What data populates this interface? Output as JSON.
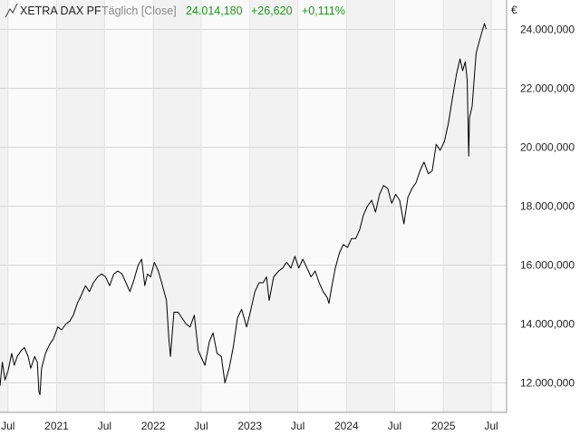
{
  "header": {
    "icon": "line-chart-icon",
    "instrument": "XETRA DAX PF",
    "interval": "Täglich [Close]",
    "last": "24.014,180",
    "change_abs": "+26,620",
    "change_pct": "+0,111%",
    "up_color": "#1a9a1a"
  },
  "currency_unit": "€",
  "chart_data": {
    "type": "line",
    "title": "XETRA DAX PF",
    "xlabel": "",
    "ylabel": "€",
    "grid": true,
    "ylim": [
      11000,
      25000
    ],
    "xlim": [
      "2020-06-01",
      "2025-08-28"
    ],
    "y_ticks": [
      12000,
      14000,
      16000,
      18000,
      20000,
      22000,
      24000
    ],
    "y_tick_labels": [
      "12.000,000",
      "14.000,000",
      "16.000,000",
      "18.000,000",
      "20.000,000",
      "22.000,000",
      "24.000,000"
    ],
    "x_ticks": [
      {
        "date": "2020-07-01",
        "label": "Jul"
      },
      {
        "date": "2021-01-01",
        "label": "2021"
      },
      {
        "date": "2021-07-01",
        "label": "Jul"
      },
      {
        "date": "2022-01-01",
        "label": "2022"
      },
      {
        "date": "2022-07-01",
        "label": "Jul"
      },
      {
        "date": "2023-01-01",
        "label": "2023"
      },
      {
        "date": "2023-07-01",
        "label": "Jul"
      },
      {
        "date": "2024-01-01",
        "label": "2024"
      },
      {
        "date": "2024-07-01",
        "label": "Jul"
      },
      {
        "date": "2025-01-01",
        "label": "2025"
      },
      {
        "date": "2025-07-01",
        "label": "Jul"
      }
    ],
    "series": [
      {
        "name": "XETRA DAX PF",
        "color": "#000000",
        "points": [
          [
            "2020-06-01",
            11900
          ],
          [
            "2020-06-10",
            12700
          ],
          [
            "2020-06-20",
            12100
          ],
          [
            "2020-07-01",
            12400
          ],
          [
            "2020-07-15",
            13000
          ],
          [
            "2020-07-25",
            12600
          ],
          [
            "2020-08-05",
            12900
          ],
          [
            "2020-08-20",
            13100
          ],
          [
            "2020-09-01",
            13200
          ],
          [
            "2020-09-15",
            12900
          ],
          [
            "2020-09-25",
            12500
          ],
          [
            "2020-10-10",
            12900
          ],
          [
            "2020-10-20",
            12700
          ],
          [
            "2020-10-26",
            11700
          ],
          [
            "2020-10-30",
            11600
          ],
          [
            "2020-11-05",
            12500
          ],
          [
            "2020-11-20",
            13000
          ],
          [
            "2020-12-05",
            13300
          ],
          [
            "2020-12-20",
            13500
          ],
          [
            "2021-01-05",
            13900
          ],
          [
            "2021-01-20",
            13800
          ],
          [
            "2021-02-05",
            14000
          ],
          [
            "2021-02-20",
            14100
          ],
          [
            "2021-03-05",
            14300
          ],
          [
            "2021-03-20",
            14700
          ],
          [
            "2021-04-05",
            15000
          ],
          [
            "2021-04-20",
            15300
          ],
          [
            "2021-05-05",
            15100
          ],
          [
            "2021-05-20",
            15400
          ],
          [
            "2021-06-05",
            15600
          ],
          [
            "2021-06-20",
            15700
          ],
          [
            "2021-07-05",
            15600
          ],
          [
            "2021-07-20",
            15300
          ],
          [
            "2021-08-05",
            15700
          ],
          [
            "2021-08-20",
            15800
          ],
          [
            "2021-09-05",
            15700
          ],
          [
            "2021-09-20",
            15400
          ],
          [
            "2021-10-05",
            15100
          ],
          [
            "2021-10-20",
            15500
          ],
          [
            "2021-11-05",
            16000
          ],
          [
            "2021-11-18",
            16200
          ],
          [
            "2021-11-30",
            15300
          ],
          [
            "2021-12-10",
            15700
          ],
          [
            "2021-12-22",
            15600
          ],
          [
            "2022-01-05",
            16100
          ],
          [
            "2022-01-20",
            15800
          ],
          [
            "2022-02-05",
            15300
          ],
          [
            "2022-02-20",
            14800
          ],
          [
            "2022-03-01",
            13500
          ],
          [
            "2022-03-07",
            12900
          ],
          [
            "2022-03-20",
            14400
          ],
          [
            "2022-04-05",
            14400
          ],
          [
            "2022-04-20",
            14200
          ],
          [
            "2022-05-05",
            14000
          ],
          [
            "2022-05-20",
            13900
          ],
          [
            "2022-06-05",
            14300
          ],
          [
            "2022-06-20",
            13100
          ],
          [
            "2022-07-05",
            12800
          ],
          [
            "2022-07-15",
            12600
          ],
          [
            "2022-08-01",
            13400
          ],
          [
            "2022-08-15",
            13700
          ],
          [
            "2022-08-30",
            13000
          ],
          [
            "2022-09-15",
            12900
          ],
          [
            "2022-09-29",
            12000
          ],
          [
            "2022-10-15",
            12500
          ],
          [
            "2022-10-30",
            13200
          ],
          [
            "2022-11-15",
            14200
          ],
          [
            "2022-12-01",
            14500
          ],
          [
            "2022-12-20",
            13900
          ],
          [
            "2023-01-05",
            14500
          ],
          [
            "2023-01-20",
            15100
          ],
          [
            "2023-02-05",
            15400
          ],
          [
            "2023-02-20",
            15400
          ],
          [
            "2023-03-05",
            15600
          ],
          [
            "2023-03-15",
            14800
          ],
          [
            "2023-04-01",
            15600
          ],
          [
            "2023-04-20",
            15800
          ],
          [
            "2023-05-05",
            15900
          ],
          [
            "2023-05-20",
            16100
          ],
          [
            "2023-06-05",
            15900
          ],
          [
            "2023-06-20",
            16300
          ],
          [
            "2023-07-05",
            15900
          ],
          [
            "2023-07-20",
            16200
          ],
          [
            "2023-08-05",
            15900
          ],
          [
            "2023-08-20",
            15600
          ],
          [
            "2023-09-05",
            15800
          ],
          [
            "2023-09-20",
            15400
          ],
          [
            "2023-10-05",
            15100
          ],
          [
            "2023-10-20",
            14900
          ],
          [
            "2023-10-27",
            14700
          ],
          [
            "2023-11-05",
            15200
          ],
          [
            "2023-11-20",
            15900
          ],
          [
            "2023-12-05",
            16400
          ],
          [
            "2023-12-20",
            16700
          ],
          [
            "2024-01-05",
            16600
          ],
          [
            "2024-01-20",
            16900
          ],
          [
            "2024-02-05",
            16900
          ],
          [
            "2024-02-20",
            17200
          ],
          [
            "2024-03-05",
            17700
          ],
          [
            "2024-03-20",
            18000
          ],
          [
            "2024-04-05",
            18200
          ],
          [
            "2024-04-20",
            17800
          ],
          [
            "2024-05-05",
            18400
          ],
          [
            "2024-05-20",
            18700
          ],
          [
            "2024-06-05",
            18600
          ],
          [
            "2024-06-20",
            18100
          ],
          [
            "2024-07-05",
            18400
          ],
          [
            "2024-07-20",
            18200
          ],
          [
            "2024-08-05",
            17400
          ],
          [
            "2024-08-20",
            18300
          ],
          [
            "2024-09-05",
            18600
          ],
          [
            "2024-09-20",
            18800
          ],
          [
            "2024-10-05",
            19200
          ],
          [
            "2024-10-20",
            19500
          ],
          [
            "2024-11-05",
            19100
          ],
          [
            "2024-11-20",
            19200
          ],
          [
            "2024-12-05",
            20100
          ],
          [
            "2024-12-20",
            19900
          ],
          [
            "2025-01-05",
            20200
          ],
          [
            "2025-01-20",
            20800
          ],
          [
            "2025-02-05",
            21700
          ],
          [
            "2025-02-20",
            22500
          ],
          [
            "2025-03-05",
            23000
          ],
          [
            "2025-03-15",
            22600
          ],
          [
            "2025-03-25",
            22900
          ],
          [
            "2025-04-01",
            22300
          ],
          [
            "2025-04-07",
            19700
          ],
          [
            "2025-04-10",
            21000
          ],
          [
            "2025-04-20",
            21400
          ],
          [
            "2025-05-05",
            23200
          ],
          [
            "2025-05-20",
            23700
          ],
          [
            "2025-06-05",
            24200
          ],
          [
            "2025-06-12",
            24014
          ]
        ]
      }
    ]
  }
}
